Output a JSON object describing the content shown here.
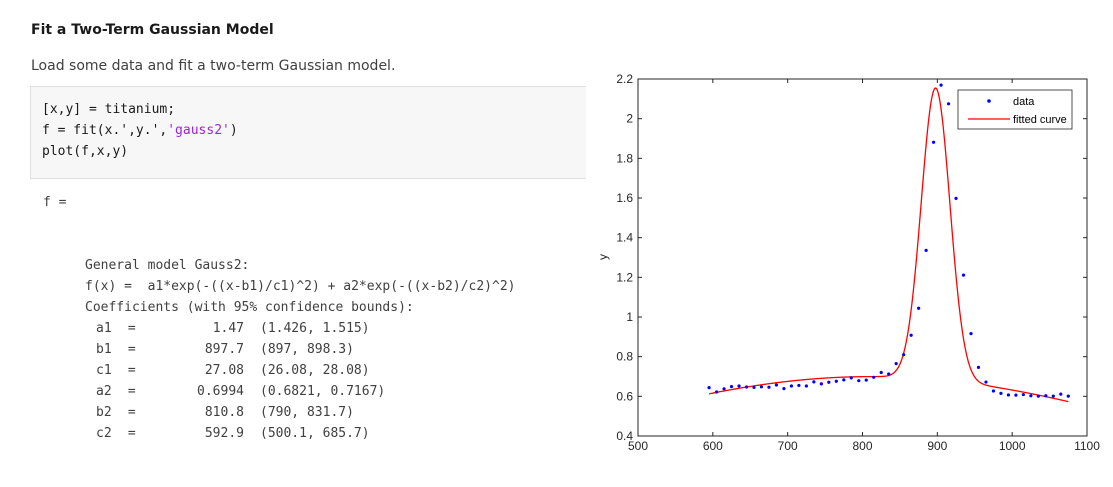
{
  "section": {
    "heading": "Fit a Two-Term Gaussian Model",
    "description": "Load some data and fit a two-term Gaussian model."
  },
  "code": {
    "line1": "[x,y] = titanium;",
    "line2_pre": "f = fit(x.',y.',",
    "line2_str": "'gauss2'",
    "line2_post": ")",
    "line3": "plot(f,x,y)"
  },
  "output": {
    "var_line": "f =",
    "model_line": "General model Gauss2:",
    "equation_line": "f(x) =  a1*exp(-((x-b1)/c1)^2) + a2*exp(-((x-b2)/c2)^2)",
    "coef_header": "Coefficients (with 95% confidence bounds):",
    "coefficients": [
      {
        "name": "a1",
        "value": "1.47",
        "bounds": "(1.426, 1.515)"
      },
      {
        "name": "b1",
        "value": "897.7",
        "bounds": "(897, 898.3)"
      },
      {
        "name": "c1",
        "value": "27.08",
        "bounds": "(26.08, 28.08)"
      },
      {
        "name": "a2",
        "value": "0.6994",
        "bounds": "(0.6821, 0.7167)"
      },
      {
        "name": "b2",
        "value": "810.8",
        "bounds": "(790, 831.7)"
      },
      {
        "name": "c2",
        "value": "592.9",
        "bounds": "(500.1, 685.7)"
      }
    ]
  },
  "chart_data": {
    "type": "scatter",
    "xlabel": "",
    "ylabel": "y",
    "xlim": [
      500,
      1100
    ],
    "ylim": [
      0.4,
      2.2
    ],
    "xticks": [
      500,
      600,
      700,
      800,
      900,
      1000,
      1100
    ],
    "yticks": [
      0.4,
      0.6,
      0.8,
      1,
      1.2,
      1.4,
      1.6,
      1.8,
      2,
      2.2
    ],
    "ytick_labels": [
      "0.4",
      "0.6",
      "0.8",
      "1",
      "1.2",
      "1.4",
      "1.6",
      "1.8",
      "2",
      "2.2"
    ],
    "grid": false,
    "legend_position": "top-right",
    "series": [
      {
        "name": "data",
        "style": "points",
        "color": "#0000ff",
        "x": [
          595,
          605,
          615,
          625,
          635,
          645,
          655,
          665,
          675,
          685,
          695,
          705,
          715,
          725,
          735,
          745,
          755,
          765,
          775,
          785,
          795,
          805,
          815,
          825,
          835,
          845,
          855,
          865,
          875,
          885,
          895,
          905,
          915,
          925,
          935,
          945,
          955,
          965,
          975,
          985,
          995,
          1005,
          1015,
          1025,
          1035,
          1045,
          1055,
          1065,
          1075
        ],
        "y": [
          0.644,
          0.622,
          0.638,
          0.649,
          0.652,
          0.647,
          0.645,
          0.648,
          0.646,
          0.657,
          0.639,
          0.652,
          0.655,
          0.652,
          0.673,
          0.663,
          0.671,
          0.676,
          0.683,
          0.693,
          0.679,
          0.682,
          0.696,
          0.72,
          0.713,
          0.765,
          0.81,
          0.908,
          1.044,
          1.336,
          1.881,
          2.169,
          2.075,
          1.598,
          1.211,
          0.916,
          0.746,
          0.672,
          0.627,
          0.615,
          0.607,
          0.606,
          0.609,
          0.603,
          0.601,
          0.603,
          0.601,
          0.611,
          0.601
        ]
      },
      {
        "name": "fitted curve",
        "style": "line",
        "color": "#ff0000",
        "model": "gauss2",
        "params": {
          "a1": 1.47,
          "b1": 897.7,
          "c1": 27.08,
          "a2": 0.6994,
          "b2": 810.8,
          "c2": 592.9
        },
        "x_range": [
          595,
          1075
        ]
      }
    ]
  }
}
